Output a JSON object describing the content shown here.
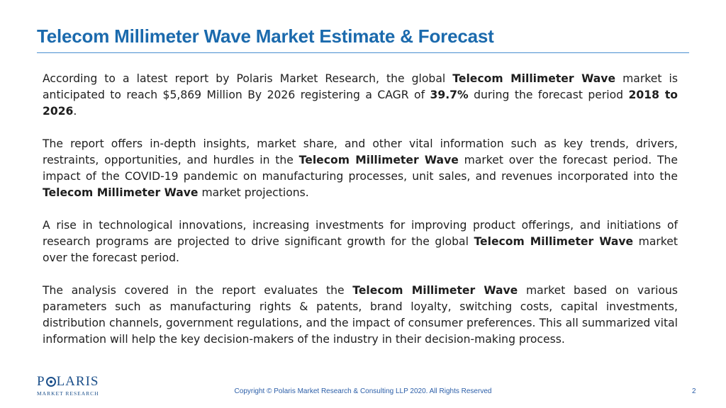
{
  "title": "Telecom Millimeter Wave Market Estimate & Forecast",
  "paragraphs": [
    [
      {
        "t": "According to a latest report by Polaris Market Research, the global "
      },
      {
        "t": "Telecom Millimeter Wave",
        "b": true
      },
      {
        "t": " market is anticipated to reach $5,869 Million By 2026 registering a CAGR of "
      },
      {
        "t": "39.7%",
        "b": true
      },
      {
        "t": " during the forecast period "
      },
      {
        "t": "2018 to 2026",
        "b": true
      },
      {
        "t": "."
      }
    ],
    [
      {
        "t": "The report offers in-depth insights, market share, and other vital information such as key trends, drivers, restraints, opportunities, and hurdles in the "
      },
      {
        "t": "Telecom Millimeter Wave",
        "b": true
      },
      {
        "t": " market over the forecast period. The impact of the COVID-19 pandemic on manufacturing processes, unit sales, and revenues incorporated into the "
      },
      {
        "t": "Telecom Millimeter Wave",
        "b": true
      },
      {
        "t": " market projections."
      }
    ],
    [
      {
        "t": "A rise in technological innovations, increasing investments for improving product offerings, and initiations of research programs are projected to drive significant growth for the global "
      },
      {
        "t": "Telecom Millimeter Wave",
        "b": true
      },
      {
        "t": " market over the forecast period."
      }
    ],
    [
      {
        "t": "The analysis covered in the report evaluates the "
      },
      {
        "t": "Telecom Millimeter Wave",
        "b": true
      },
      {
        "t": " market based on various parameters such as manufacturing rights & patents, brand loyalty, switching costs, capital investments, distribution channels, government regulations, and the impact of consumer preferences. This all summarized vital information will help the key decision-makers of the industry in their decision-making process."
      }
    ]
  ],
  "logo": {
    "name_left": "P",
    "name_right": "LARIS",
    "subtitle": "MARKET RESEARCH"
  },
  "footer": {
    "copyright": "Copyright © Polaris Market Research & Consulting LLP 2020. All Rights Reserved",
    "page_number": "2"
  },
  "colors": {
    "title": "#1b6aad",
    "rule": "#4a90d0",
    "footer_text": "#2b5ea8",
    "logo": "#1b4f8a"
  }
}
